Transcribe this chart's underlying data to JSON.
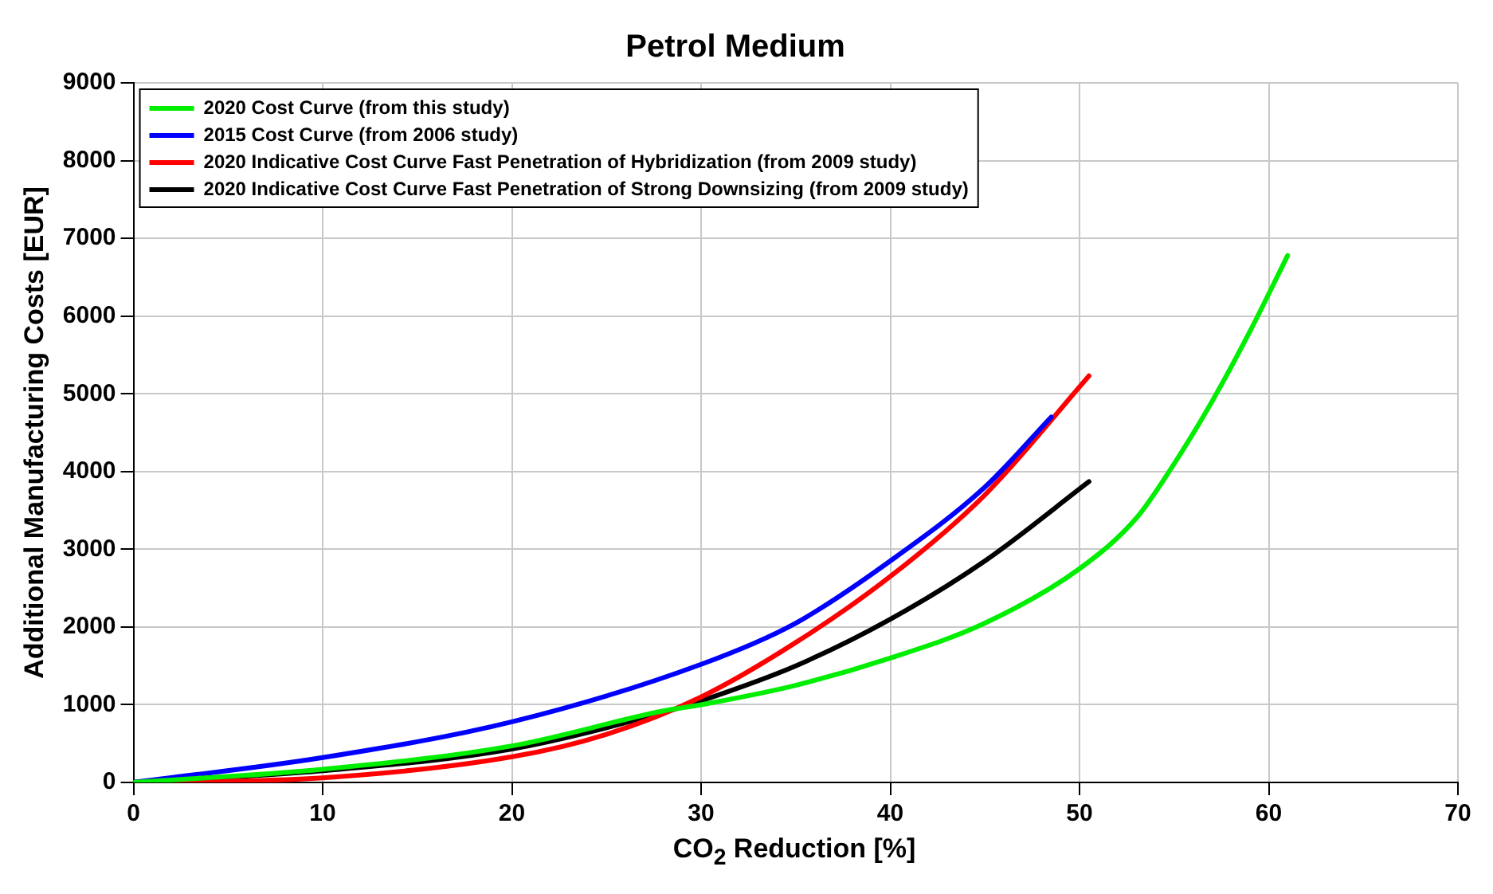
{
  "chart_data": {
    "type": "line",
    "title": "Petrol Medium",
    "xlabel": "CO$_{2}$ Reduction [%]",
    "ylabel": "Additional Manufacturing Costs [EUR]",
    "xlim": [
      0,
      70
    ],
    "xticks": [
      0,
      10,
      20,
      30,
      40,
      50,
      60,
      70
    ],
    "ylim": [
      0,
      9000
    ],
    "yticks": [
      0,
      1000,
      2000,
      3000,
      4000,
      5000,
      6000,
      7000,
      8000,
      9000
    ],
    "grid": true,
    "legend": "top left",
    "marker": "none",
    "line_style": "solid",
    "series": [
      {
        "name": "2020 Cost Curve (from this study)",
        "color": "#00ee00",
        "x": [
          0,
          10,
          20,
          28,
          30,
          35,
          40,
          45,
          50,
          53,
          55,
          57,
          59,
          61
        ],
        "values": [
          0,
          170,
          470,
          920,
          1000,
          1250,
          1600,
          2050,
          2750,
          3400,
          4100,
          4900,
          5800,
          6780
        ]
      },
      {
        "name": "2015 Cost Curve (from 2006 study)",
        "color": "#0000ff",
        "x": [
          0,
          10,
          20,
          30,
          35,
          40,
          45,
          48.5
        ],
        "values": [
          0,
          320,
          780,
          1520,
          2050,
          2850,
          3800,
          4700
        ]
      },
      {
        "name": "2020 Indicative Cost Curve Fast Penetration of Hybridization (from 2009 study)",
        "color": "#ff0000",
        "x": [
          0,
          10,
          20,
          25,
          30,
          35,
          40,
          45,
          50.5
        ],
        "values": [
          0,
          60,
          330,
          620,
          1100,
          1800,
          2650,
          3700,
          5230
        ]
      },
      {
        "name": "2020 Indicative Cost Curve Fast Penetration of Strong Downsizing (from 2009 study)",
        "color": "#000000",
        "x": [
          0,
          10,
          20,
          28,
          30,
          35,
          40,
          45,
          50.5
        ],
        "values": [
          0,
          150,
          430,
          900,
          1050,
          1500,
          2100,
          2850,
          3870
        ]
      }
    ]
  }
}
